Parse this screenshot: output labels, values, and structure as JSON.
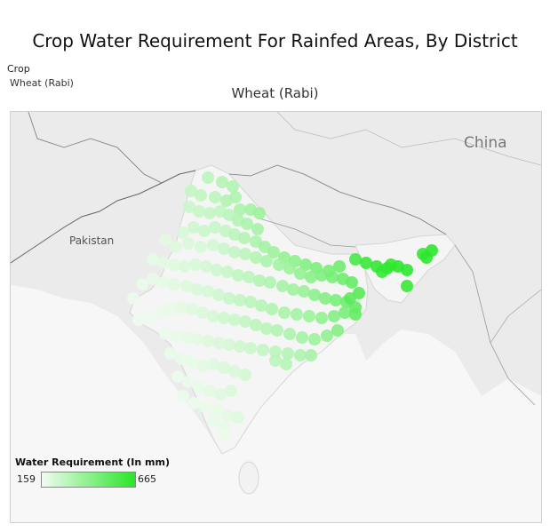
{
  "title": "Crop Water Requirement For Rainfed Areas, By District",
  "filter": {
    "label": "Crop",
    "value": "Wheat (Rabi)"
  },
  "map": {
    "title": "Wheat (Rabi)",
    "labels": {
      "pakistan": "Pakistan",
      "china": "China"
    }
  },
  "legend": {
    "title": "Water Requirement (In mm)",
    "min": "159",
    "max": "665",
    "color_low": "#f2fbf2",
    "color_high": "#29e629"
  },
  "districts": [
    [
      234,
      200,
      300
    ],
    [
      250,
      205,
      320
    ],
    [
      262,
      210,
      330
    ],
    [
      215,
      215,
      280
    ],
    [
      226,
      220,
      290
    ],
    [
      242,
      222,
      300
    ],
    [
      255,
      226,
      320
    ],
    [
      265,
      222,
      330
    ],
    [
      270,
      236,
      340
    ],
    [
      282,
      236,
      360
    ],
    [
      292,
      240,
      380
    ],
    [
      213,
      233,
      260
    ],
    [
      224,
      238,
      270
    ],
    [
      236,
      240,
      280
    ],
    [
      248,
      238,
      290
    ],
    [
      258,
      242,
      300
    ],
    [
      268,
      248,
      320
    ],
    [
      278,
      252,
      340
    ],
    [
      290,
      258,
      350
    ],
    [
      206,
      262,
      230
    ],
    [
      218,
      256,
      250
    ],
    [
      230,
      260,
      260
    ],
    [
      242,
      256,
      270
    ],
    [
      254,
      260,
      280
    ],
    [
      264,
      264,
      300
    ],
    [
      275,
      268,
      320
    ],
    [
      288,
      272,
      340
    ],
    [
      298,
      278,
      360
    ],
    [
      308,
      284,
      380
    ],
    [
      320,
      290,
      400
    ],
    [
      332,
      294,
      420
    ],
    [
      344,
      298,
      440
    ],
    [
      356,
      302,
      460
    ],
    [
      370,
      305,
      480
    ],
    [
      382,
      300,
      500
    ],
    [
      186,
      270,
      200
    ],
    [
      198,
      278,
      210
    ],
    [
      212,
      274,
      220
    ],
    [
      226,
      278,
      230
    ],
    [
      240,
      276,
      240
    ],
    [
      252,
      280,
      260
    ],
    [
      264,
      284,
      280
    ],
    [
      276,
      286,
      300
    ],
    [
      288,
      290,
      320
    ],
    [
      300,
      294,
      340
    ],
    [
      314,
      298,
      360
    ],
    [
      326,
      302,
      380
    ],
    [
      338,
      308,
      400
    ],
    [
      350,
      312,
      430
    ],
    [
      362,
      310,
      450
    ],
    [
      374,
      312,
      470
    ],
    [
      386,
      314,
      500
    ],
    [
      396,
      318,
      520
    ],
    [
      172,
      292,
      190
    ],
    [
      184,
      296,
      200
    ],
    [
      196,
      298,
      210
    ],
    [
      208,
      300,
      220
    ],
    [
      220,
      298,
      230
    ],
    [
      232,
      300,
      240
    ],
    [
      244,
      304,
      250
    ],
    [
      256,
      306,
      270
    ],
    [
      268,
      310,
      290
    ],
    [
      280,
      312,
      300
    ],
    [
      292,
      316,
      320
    ],
    [
      304,
      318,
      330
    ],
    [
      318,
      322,
      350
    ],
    [
      330,
      326,
      370
    ],
    [
      342,
      328,
      390
    ],
    [
      354,
      332,
      420
    ],
    [
      366,
      336,
      440
    ],
    [
      378,
      338,
      470
    ],
    [
      390,
      340,
      500
    ],
    [
      400,
      346,
      520
    ],
    [
      150,
      336,
      175
    ],
    [
      160,
      320,
      180
    ],
    [
      172,
      314,
      185
    ],
    [
      184,
      318,
      195
    ],
    [
      196,
      320,
      205
    ],
    [
      210,
      322,
      215
    ],
    [
      222,
      326,
      225
    ],
    [
      234,
      328,
      235
    ],
    [
      246,
      332,
      250
    ],
    [
      258,
      336,
      270
    ],
    [
      270,
      338,
      285
    ],
    [
      282,
      340,
      300
    ],
    [
      294,
      344,
      315
    ],
    [
      306,
      348,
      330
    ],
    [
      320,
      352,
      345
    ],
    [
      334,
      354,
      360
    ],
    [
      348,
      356,
      380
    ],
    [
      362,
      358,
      410
    ],
    [
      376,
      356,
      440
    ],
    [
      388,
      352,
      470
    ],
    [
      156,
      360,
      170
    ],
    [
      168,
      356,
      175
    ],
    [
      180,
      352,
      180
    ],
    [
      192,
      348,
      190
    ],
    [
      204,
      346,
      200
    ],
    [
      216,
      348,
      210
    ],
    [
      228,
      352,
      220
    ],
    [
      240,
      356,
      235
    ],
    [
      252,
      358,
      250
    ],
    [
      264,
      360,
      265
    ],
    [
      276,
      362,
      280
    ],
    [
      288,
      366,
      295
    ],
    [
      300,
      370,
      310
    ],
    [
      312,
      372,
      325
    ],
    [
      326,
      376,
      340
    ],
    [
      340,
      380,
      360
    ],
    [
      354,
      382,
      380
    ],
    [
      368,
      378,
      410
    ],
    [
      380,
      372,
      440
    ],
    [
      186,
      376,
      180
    ],
    [
      198,
      378,
      190
    ],
    [
      210,
      380,
      195
    ],
    [
      222,
      382,
      205
    ],
    [
      234,
      384,
      215
    ],
    [
      246,
      386,
      225
    ],
    [
      258,
      388,
      235
    ],
    [
      270,
      390,
      250
    ],
    [
      282,
      392,
      265
    ],
    [
      296,
      394,
      280
    ],
    [
      310,
      396,
      300
    ],
    [
      324,
      398,
      315
    ],
    [
      338,
      400,
      335
    ],
    [
      350,
      400,
      350
    ],
    [
      192,
      398,
      180
    ],
    [
      204,
      404,
      185
    ],
    [
      216,
      408,
      190
    ],
    [
      228,
      412,
      200
    ],
    [
      240,
      410,
      210
    ],
    [
      252,
      414,
      220
    ],
    [
      264,
      418,
      230
    ],
    [
      276,
      422,
      240
    ],
    [
      310,
      406,
      300
    ],
    [
      322,
      410,
      310
    ],
    [
      200,
      424,
      175
    ],
    [
      212,
      430,
      180
    ],
    [
      224,
      436,
      190
    ],
    [
      236,
      440,
      200
    ],
    [
      248,
      444,
      210
    ],
    [
      260,
      440,
      220
    ],
    [
      206,
      446,
      170
    ],
    [
      218,
      454,
      175
    ],
    [
      230,
      458,
      180
    ],
    [
      244,
      462,
      190
    ],
    [
      256,
      468,
      200
    ],
    [
      268,
      470,
      210
    ],
    [
      240,
      474,
      185
    ],
    [
      252,
      480,
      190
    ],
    [
      252,
      490,
      180
    ],
    [
      400,
      292,
      600
    ],
    [
      412,
      296,
      640
    ],
    [
      424,
      300,
      650
    ],
    [
      436,
      302,
      660
    ],
    [
      448,
      300,
      665
    ],
    [
      458,
      304,
      660
    ],
    [
      430,
      306,
      640
    ],
    [
      440,
      298,
      650
    ],
    [
      476,
      286,
      650
    ],
    [
      486,
      282,
      665
    ],
    [
      480,
      290,
      660
    ],
    [
      458,
      322,
      640
    ],
    [
      404,
      330,
      560
    ],
    [
      394,
      336,
      540
    ],
    [
      400,
      354,
      520
    ]
  ]
}
